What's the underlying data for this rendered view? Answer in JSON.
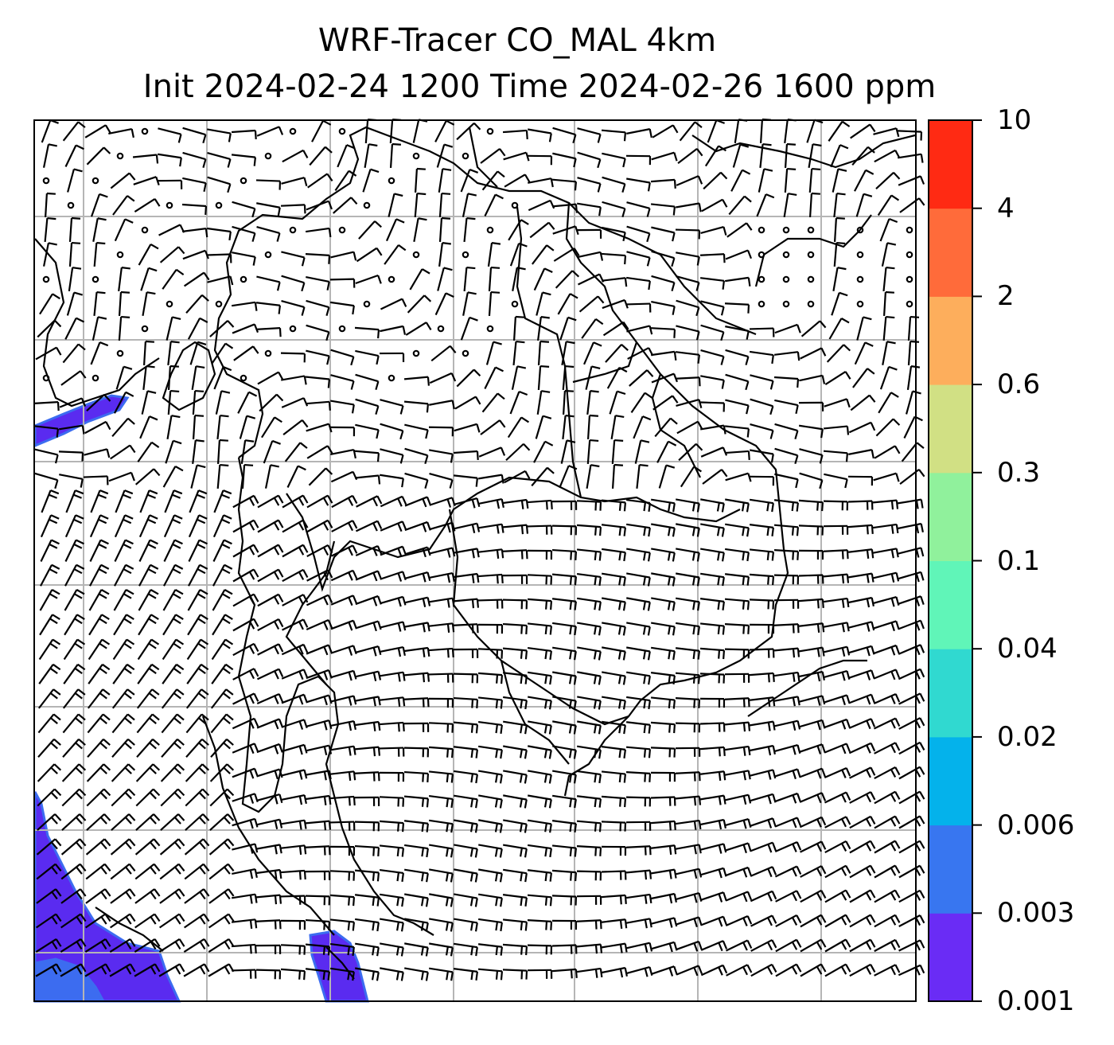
{
  "figure": {
    "title_line1": "WRF-Tracer CO_MAL 4km",
    "title_line2": "Init 2024-02-24 1200 Time 2024-02-26 1600 ppm",
    "overlay": "wind-barbs",
    "basemap": "coastlines-and-borders",
    "gridlines": true
  },
  "colorbar": {
    "ticks": [
      "0.001",
      "0.003",
      "0.006",
      "0.02",
      "0.04",
      "0.1",
      "0.3",
      "0.6",
      "2",
      "4",
      "10"
    ],
    "colors": [
      "#6a2cf5",
      "#3876f0",
      "#04b2eb",
      "#30d9d0",
      "#60f5b8",
      "#90f19c",
      "#d1e084",
      "#fdae5c",
      "#ff6b3a",
      "#ff2a13"
    ]
  },
  "plume_fill_color": "#5a2bf0",
  "plume_edge_color": "#3c6cf0"
}
